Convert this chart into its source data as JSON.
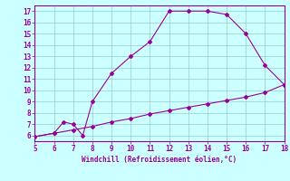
{
  "xlabel": "Windchill (Refroidissement éolien,°C)",
  "xlim": [
    5,
    18
  ],
  "ylim": [
    5.5,
    17.5
  ],
  "xticks": [
    5,
    6,
    7,
    8,
    9,
    10,
    11,
    12,
    13,
    14,
    15,
    16,
    17,
    18
  ],
  "yticks": [
    6,
    7,
    8,
    9,
    10,
    11,
    12,
    13,
    14,
    15,
    16,
    17
  ],
  "line1_x": [
    5,
    6,
    6.5,
    7,
    7.5,
    8,
    9,
    10,
    11,
    12,
    13,
    14,
    15,
    16,
    17,
    18
  ],
  "line1_y": [
    5.9,
    6.2,
    7.2,
    7.0,
    6.0,
    9.0,
    11.5,
    13.0,
    14.3,
    17.0,
    17.0,
    17.0,
    16.7,
    15.0,
    12.2,
    10.5
  ],
  "line2_x": [
    5,
    6,
    7,
    8,
    9,
    10,
    11,
    12,
    13,
    14,
    15,
    16,
    17,
    18
  ],
  "line2_y": [
    5.9,
    6.2,
    6.5,
    6.8,
    7.2,
    7.5,
    7.9,
    8.2,
    8.5,
    8.8,
    9.1,
    9.4,
    9.8,
    10.5
  ],
  "line_color": "#990099",
  "bg_color": "#ccffff",
  "grid_color": "#99cccc",
  "tick_color": "#990099",
  "label_color": "#990099",
  "marker": "D",
  "markersize": 2.0,
  "linewidth": 0.8,
  "tick_labelsize": 5.5,
  "xlabel_fontsize": 5.5
}
